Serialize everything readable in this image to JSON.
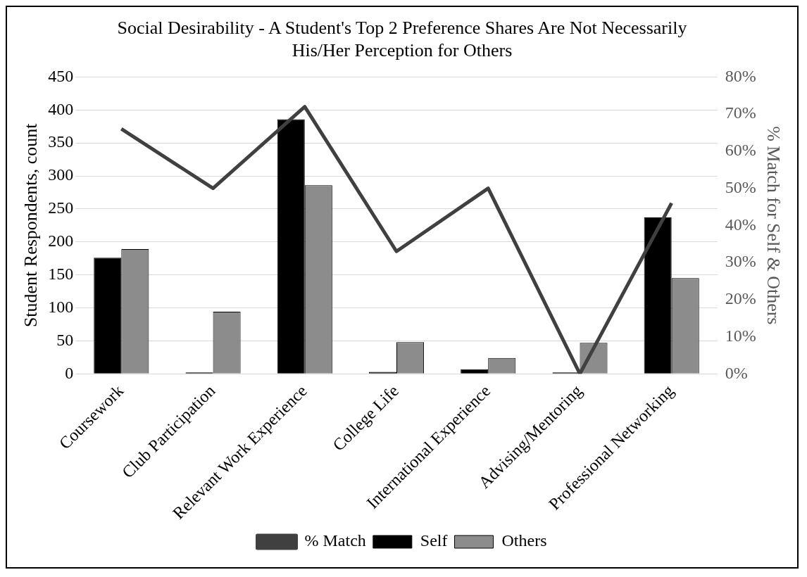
{
  "chart_data": {
    "type": "bar",
    "title": "Social Desirability - A Student's Top 2 Preference Shares Are Not Necessarily His/Her Perception for Others",
    "ylabel": "Student Respondents, count",
    "y2label": "% Match for Self & Others",
    "categories": [
      "Coursework",
      "Club Participation",
      "Relevant Work Experience",
      "College Life",
      "International Experience",
      "Advising/Mentoring",
      "Professional Networking"
    ],
    "series": [
      {
        "name": "Self",
        "color": "#000000",
        "values": [
          176,
          2,
          386,
          3,
          7,
          2,
          237
        ]
      },
      {
        "name": "Others",
        "color": "#8c8c8c",
        "values": [
          189,
          94,
          286,
          48,
          24,
          47,
          145
        ]
      },
      {
        "name": "% Match",
        "type": "line",
        "axis": "y2",
        "color": "#404040",
        "values": [
          66,
          50,
          72,
          33,
          50,
          0,
          46
        ]
      }
    ],
    "ylim": [
      0,
      450
    ],
    "yticks": [
      0,
      50,
      100,
      150,
      200,
      250,
      300,
      350,
      400,
      450
    ],
    "y2lim": [
      0,
      80
    ],
    "y2ticks": [
      {
        "value": 0,
        "label": "0%"
      },
      {
        "value": 10,
        "label": "10%"
      },
      {
        "value": 20,
        "label": "20%"
      },
      {
        "value": 30,
        "label": "30%"
      },
      {
        "value": 40,
        "label": "40%"
      },
      {
        "value": 50,
        "label": "50%"
      },
      {
        "value": 60,
        "label": "60%"
      },
      {
        "value": 70,
        "label": "70%"
      },
      {
        "value": 80,
        "label": "80%"
      }
    ],
    "grid": "y",
    "legend": "bottom",
    "marker": "none"
  }
}
